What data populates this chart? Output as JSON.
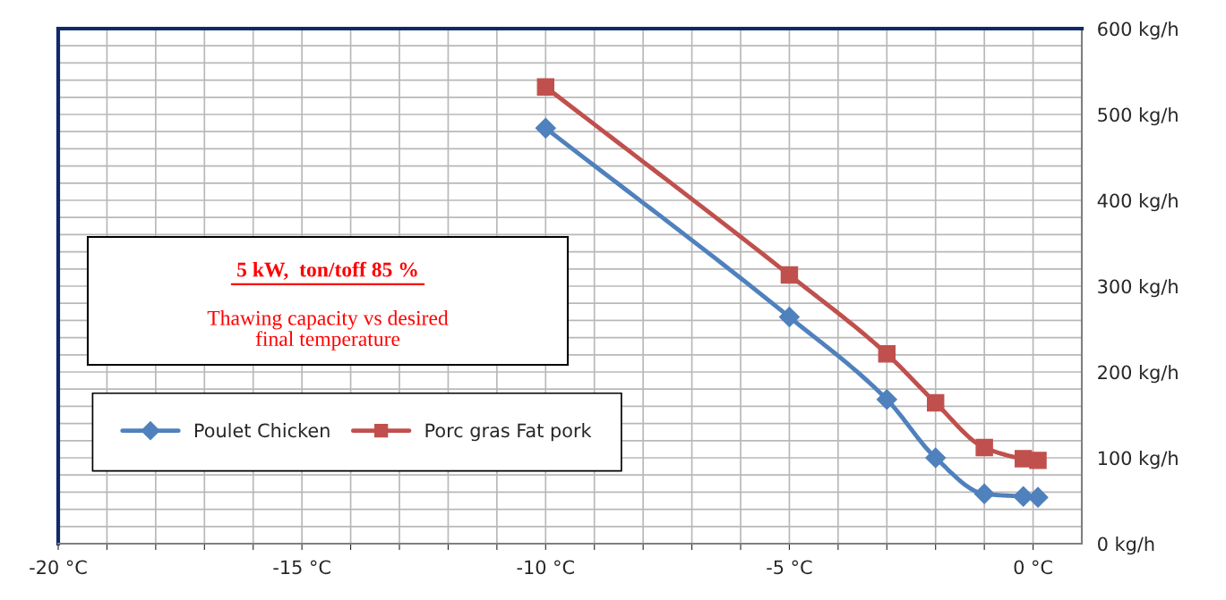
{
  "chart_data": {
    "type": "line",
    "title": "5 kW,  ton/toff 85 %",
    "subtitle": "Thawing capacity vs desired\nfinal temperature",
    "series": [
      {
        "name": "Poulet Chicken",
        "color": "#4f81bd",
        "marker": "diamond",
        "x": [
          -10,
          -5,
          -3,
          -2,
          -1,
          -0.2,
          0.1
        ],
        "values": [
          484,
          264,
          168,
          100,
          58,
          55,
          54
        ]
      },
      {
        "name": "Porc gras Fat pork",
        "color": "#c0504d",
        "marker": "square",
        "x": [
          -10,
          -5,
          -3,
          -2,
          -1,
          -0.2,
          0.1
        ],
        "values": [
          532,
          313,
          221,
          164,
          112,
          99,
          97
        ]
      }
    ],
    "xlim": [
      -20,
      1
    ],
    "ylim": [
      0,
      600
    ],
    "xticks": [
      {
        "value": -20,
        "label": "-20 °C"
      },
      {
        "value": -19,
        "label": null
      },
      {
        "value": -18,
        "label": null
      },
      {
        "value": -17,
        "label": null
      },
      {
        "value": -16,
        "label": null
      },
      {
        "value": -15,
        "label": "-15 °C"
      },
      {
        "value": -14,
        "label": null
      },
      {
        "value": -13,
        "label": null
      },
      {
        "value": -12,
        "label": null
      },
      {
        "value": -11,
        "label": null
      },
      {
        "value": -10,
        "label": "-10 °C"
      },
      {
        "value": -9,
        "label": null
      },
      {
        "value": -8,
        "label": null
      },
      {
        "value": -7,
        "label": null
      },
      {
        "value": -6,
        "label": null
      },
      {
        "value": -5,
        "label": "-5 °C"
      },
      {
        "value": -4,
        "label": null
      },
      {
        "value": -3,
        "label": null
      },
      {
        "value": -2,
        "label": null
      },
      {
        "value": -1,
        "label": null
      },
      {
        "value": 0,
        "label": "0 °C"
      }
    ],
    "yticks": [
      {
        "value": 0,
        "label": "0 kg/h"
      },
      {
        "value": 20,
        "label": null
      },
      {
        "value": 40,
        "label": null
      },
      {
        "value": 60,
        "label": null
      },
      {
        "value": 80,
        "label": null
      },
      {
        "value": 100,
        "label": "100 kg/h"
      },
      {
        "value": 120,
        "label": null
      },
      {
        "value": 140,
        "label": null
      },
      {
        "value": 160,
        "label": null
      },
      {
        "value": 180,
        "label": null
      },
      {
        "value": 200,
        "label": "200 kg/h"
      },
      {
        "value": 220,
        "label": null
      },
      {
        "value": 240,
        "label": null
      },
      {
        "value": 260,
        "label": null
      },
      {
        "value": 280,
        "label": null
      },
      {
        "value": 300,
        "label": "300 kg/h"
      },
      {
        "value": 320,
        "label": null
      },
      {
        "value": 340,
        "label": null
      },
      {
        "value": 360,
        "label": null
      },
      {
        "value": 380,
        "label": null
      },
      {
        "value": 400,
        "label": "400 kg/h"
      },
      {
        "value": 420,
        "label": null
      },
      {
        "value": 440,
        "label": null
      },
      {
        "value": 460,
        "label": null
      },
      {
        "value": 480,
        "label": null
      },
      {
        "value": 500,
        "label": "500 kg/h"
      },
      {
        "value": 520,
        "label": null
      },
      {
        "value": 540,
        "label": null
      },
      {
        "value": 560,
        "label": null
      },
      {
        "value": 580,
        "label": null
      },
      {
        "value": 600,
        "label": "600 kg/h"
      }
    ],
    "grid": true,
    "legend": "bottom left",
    "line_style": "solid"
  }
}
